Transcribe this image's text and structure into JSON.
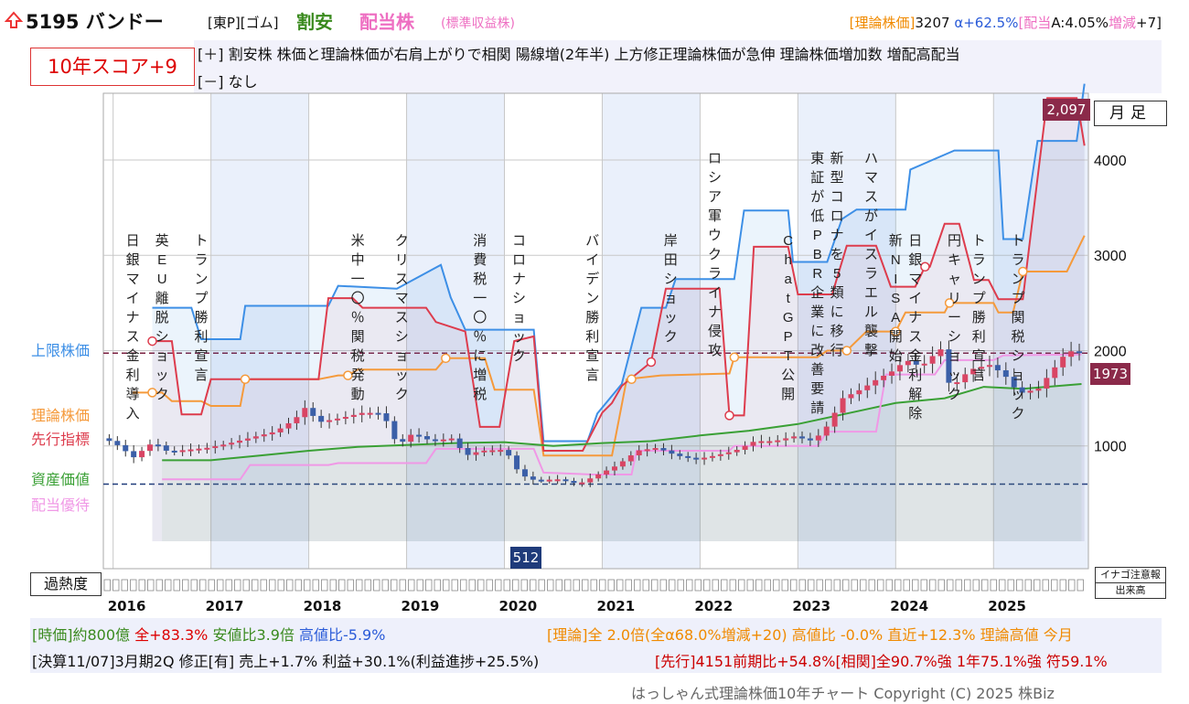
{
  "header": {
    "code_name": "5195 バンドー",
    "market": "[東P][ゴム]",
    "tag_cheap": "割安",
    "tag_div": "配当株",
    "basis": "(標準収益株)",
    "right_a": "[理論株価]",
    "right_b": "3207",
    "right_c": "α+62.5%",
    "right_d": "[配当",
    "right_e": "A:4.05%",
    "right_f": "増減",
    "right_g": "+7]",
    "score": "10年スコア+9",
    "plus_row": "[＋] 割安株 株価と理論株価が右肩上がりで相関 陽線増(2年半) 上方修正理論株価が急伸 理論株価増加数 増配高配当",
    "minus_row": "[－] なし"
  },
  "legend_labels": {
    "upper": "上限株価",
    "theory": "理論株価",
    "leading": "先行指標",
    "asset": "資産価値",
    "yield": "配当優待"
  },
  "boxes": {
    "monthly": "月足",
    "overheat": "過熱度",
    "warning": "イナゴ注意報",
    "volume": "出来高",
    "price_max": "2,097",
    "price_min": "512",
    "price_last": "1973"
  },
  "chart_data": {
    "type": "line",
    "x": [
      "2016",
      "2017",
      "2018",
      "2019",
      "2020",
      "2021",
      "2022",
      "2023",
      "2024",
      "2025"
    ],
    "y_ticks": [
      1000,
      2000,
      3000,
      4000
    ],
    "ylim": [
      0,
      4700
    ],
    "events": [
      {
        "x": 2016.2,
        "text": "日銀マイナス金利導入"
      },
      {
        "x": 2016.5,
        "text": "英EU離脱ショック"
      },
      {
        "x": 2016.9,
        "text": "トランプ勝利宣言"
      },
      {
        "x": 2018.5,
        "text": "米中一〇％関税発動"
      },
      {
        "x": 2018.95,
        "text": "クリスマスショック"
      },
      {
        "x": 2019.75,
        "text": "消費税一〇％に増税"
      },
      {
        "x": 2020.15,
        "text": "コロナショック"
      },
      {
        "x": 2020.9,
        "text": "バイデン勝利宣言"
      },
      {
        "x": 2021.7,
        "text": "岸田ショック"
      },
      {
        "x": 2022.15,
        "text": "ロシア軍ウクライナ侵攻"
      },
      {
        "x": 2022.9,
        "text": "ChatGPT公開"
      },
      {
        "x": 2023.2,
        "text": "東証が低PBR企業に改善要請"
      },
      {
        "x": 2023.4,
        "text": "新型コロナを5類に移行"
      },
      {
        "x": 2023.75,
        "text": "ハマスがイスラエル襲撃"
      },
      {
        "x": 2024.0,
        "text": "新NISA開始"
      },
      {
        "x": 2024.2,
        "text": "日銀マイナス金利解除"
      },
      {
        "x": 2024.6,
        "text": "円キャリーショック"
      },
      {
        "x": 2024.85,
        "text": "トランプ勝利宣言"
      },
      {
        "x": 2025.25,
        "text": "トランプ関税ショック"
      }
    ],
    "series": [
      {
        "name": "上限株価",
        "color": "#3d8fe6",
        "points": [
          [
            2016.4,
            2450
          ],
          [
            2016.8,
            2450
          ],
          [
            2016.9,
            2120
          ],
          [
            2017.3,
            2120
          ],
          [
            2017.35,
            2470
          ],
          [
            2018.2,
            2470
          ],
          [
            2018.3,
            2680
          ],
          [
            2018.9,
            2650
          ],
          [
            2019.35,
            2900
          ],
          [
            2019.45,
            2560
          ],
          [
            2019.6,
            2220
          ],
          [
            2020.3,
            2220
          ],
          [
            2020.4,
            1050
          ],
          [
            2020.85,
            1050
          ],
          [
            2020.95,
            1340
          ],
          [
            2021.2,
            1650
          ],
          [
            2021.4,
            2450
          ],
          [
            2021.65,
            2450
          ],
          [
            2021.75,
            2750
          ],
          [
            2022.35,
            2750
          ],
          [
            2022.45,
            3470
          ],
          [
            2022.9,
            3470
          ],
          [
            2022.95,
            2930
          ],
          [
            2023.3,
            2930
          ],
          [
            2023.45,
            3380
          ],
          [
            2023.6,
            3480
          ],
          [
            2024.1,
            3480
          ],
          [
            2024.15,
            3900
          ],
          [
            2024.6,
            4100
          ],
          [
            2025.05,
            4100
          ],
          [
            2025.1,
            3170
          ],
          [
            2025.3,
            3170
          ],
          [
            2025.45,
            4200
          ],
          [
            2025.85,
            4200
          ],
          [
            2025.93,
            4800
          ]
        ]
      },
      {
        "name": "理論株価",
        "color": "#f59a3b",
        "points": [
          [
            2016.2,
            1560
          ],
          [
            2016.5,
            1560
          ],
          [
            2016.6,
            1470
          ],
          [
            2016.9,
            1470
          ],
          [
            2017.0,
            1420
          ],
          [
            2017.3,
            1420
          ],
          [
            2017.35,
            1700
          ],
          [
            2018.1,
            1700
          ],
          [
            2018.3,
            1740
          ],
          [
            2018.4,
            1740
          ],
          [
            2018.5,
            1800
          ],
          [
            2019.3,
            1800
          ],
          [
            2019.4,
            1920
          ],
          [
            2019.8,
            1920
          ],
          [
            2019.9,
            1590
          ],
          [
            2020.3,
            1590
          ],
          [
            2020.4,
            900
          ],
          [
            2021.1,
            900
          ],
          [
            2021.25,
            1700
          ],
          [
            2021.6,
            1740
          ],
          [
            2022.3,
            1760
          ],
          [
            2022.35,
            1930
          ],
          [
            2023.2,
            1930
          ],
          [
            2023.3,
            2000
          ],
          [
            2023.5,
            2000
          ],
          [
            2023.7,
            2200
          ],
          [
            2024.0,
            2200
          ],
          [
            2024.1,
            2400
          ],
          [
            2024.5,
            2400
          ],
          [
            2024.55,
            2500
          ],
          [
            2025.0,
            2500
          ],
          [
            2025.05,
            2400
          ],
          [
            2025.2,
            2400
          ],
          [
            2025.3,
            2830
          ],
          [
            2025.75,
            2830
          ],
          [
            2025.93,
            3207
          ]
        ]
      },
      {
        "name": "先行指標",
        "color": "#dd3c4d",
        "points": [
          [
            2016.4,
            2100
          ],
          [
            2016.6,
            2100
          ],
          [
            2016.7,
            1330
          ],
          [
            2016.9,
            1330
          ],
          [
            2017.0,
            1700
          ],
          [
            2018.1,
            1700
          ],
          [
            2018.2,
            2550
          ],
          [
            2018.45,
            2550
          ],
          [
            2018.55,
            2450
          ],
          [
            2019.2,
            2450
          ],
          [
            2019.3,
            2300
          ],
          [
            2019.6,
            2200
          ],
          [
            2019.75,
            1200
          ],
          [
            2019.95,
            1200
          ],
          [
            2020.1,
            2100
          ],
          [
            2020.3,
            2150
          ],
          [
            2020.4,
            950
          ],
          [
            2020.8,
            950
          ],
          [
            2021.0,
            1350
          ],
          [
            2021.1,
            1450
          ],
          [
            2021.2,
            1630
          ],
          [
            2021.5,
            1880
          ],
          [
            2021.65,
            2650
          ],
          [
            2022.2,
            2650
          ],
          [
            2022.3,
            1320
          ],
          [
            2022.45,
            1320
          ],
          [
            2022.55,
            3090
          ],
          [
            2022.9,
            3090
          ],
          [
            2023.0,
            2590
          ],
          [
            2023.35,
            2590
          ],
          [
            2023.5,
            3100
          ],
          [
            2023.8,
            3100
          ],
          [
            2023.95,
            2670
          ],
          [
            2024.2,
            2670
          ],
          [
            2024.3,
            2880
          ],
          [
            2024.35,
            2880
          ],
          [
            2024.5,
            3330
          ],
          [
            2024.65,
            3330
          ],
          [
            2024.8,
            2740
          ],
          [
            2024.95,
            2740
          ],
          [
            2025.05,
            2540
          ],
          [
            2025.3,
            2540
          ],
          [
            2025.55,
            4650
          ],
          [
            2025.85,
            4650
          ],
          [
            2025.93,
            4150
          ]
        ]
      },
      {
        "name": "資産価値",
        "color": "#3aa035",
        "points": [
          [
            2016.5,
            850
          ],
          [
            2017.0,
            850
          ],
          [
            2017.5,
            900
          ],
          [
            2018.0,
            950
          ],
          [
            2018.5,
            990
          ],
          [
            2019.5,
            1030
          ],
          [
            2020.0,
            1040
          ],
          [
            2020.5,
            1000
          ],
          [
            2021.0,
            1030
          ],
          [
            2021.5,
            1050
          ],
          [
            2022.0,
            1110
          ],
          [
            2022.5,
            1160
          ],
          [
            2023.0,
            1230
          ],
          [
            2023.5,
            1340
          ],
          [
            2024.0,
            1450
          ],
          [
            2024.5,
            1500
          ],
          [
            2024.9,
            1620
          ],
          [
            2025.3,
            1600
          ],
          [
            2025.9,
            1650
          ]
        ]
      },
      {
        "name": "配当優待",
        "color": "#f098e6",
        "points": [
          [
            2016.5,
            650
          ],
          [
            2017.3,
            650
          ],
          [
            2017.4,
            800
          ],
          [
            2018.2,
            800
          ],
          [
            2018.3,
            820
          ],
          [
            2019.2,
            820
          ],
          [
            2019.3,
            970
          ],
          [
            2020.3,
            970
          ],
          [
            2020.4,
            720
          ],
          [
            2020.9,
            700
          ],
          [
            2021.3,
            700
          ],
          [
            2021.35,
            950
          ],
          [
            2022.3,
            950
          ],
          [
            2022.35,
            1000
          ],
          [
            2023.2,
            1000
          ],
          [
            2023.3,
            1150
          ],
          [
            2023.8,
            1150
          ],
          [
            2023.9,
            1750
          ],
          [
            2024.4,
            1750
          ],
          [
            2024.5,
            1900
          ],
          [
            2025.0,
            1900
          ],
          [
            2025.1,
            1950
          ],
          [
            2025.9,
            1960
          ]
        ]
      }
    ],
    "price_ref_line": 1973,
    "lower_ref_line": 600,
    "price_path": [
      [
        2015.95,
        1080
      ],
      [
        2016.1,
        1000
      ],
      [
        2016.25,
        880
      ],
      [
        2016.45,
        1040
      ],
      [
        2016.6,
        940
      ],
      [
        2016.8,
        960
      ],
      [
        2017.0,
        980
      ],
      [
        2017.2,
        1020
      ],
      [
        2017.5,
        1100
      ],
      [
        2017.7,
        1150
      ],
      [
        2017.9,
        1280
      ],
      [
        2018.0,
        1400
      ],
      [
        2018.15,
        1250
      ],
      [
        2018.4,
        1300
      ],
      [
        2018.6,
        1350
      ],
      [
        2018.8,
        1340
      ],
      [
        2018.95,
        1000
      ],
      [
        2019.1,
        1130
      ],
      [
        2019.3,
        1050
      ],
      [
        2019.5,
        1080
      ],
      [
        2019.65,
        900
      ],
      [
        2019.8,
        950
      ],
      [
        2020.05,
        960
      ],
      [
        2020.2,
        700
      ],
      [
        2020.35,
        640
      ],
      [
        2020.6,
        650
      ],
      [
        2020.8,
        600
      ],
      [
        2021.0,
        700
      ],
      [
        2021.2,
        800
      ],
      [
        2021.4,
        950
      ],
      [
        2021.6,
        980
      ],
      [
        2021.8,
        900
      ],
      [
        2022.0,
        860
      ],
      [
        2022.2,
        900
      ],
      [
        2022.4,
        950
      ],
      [
        2022.6,
        1050
      ],
      [
        2022.8,
        1050
      ],
      [
        2023.0,
        1100
      ],
      [
        2023.2,
        1050
      ],
      [
        2023.35,
        1220
      ],
      [
        2023.5,
        1500
      ],
      [
        2023.7,
        1600
      ],
      [
        2023.85,
        1700
      ],
      [
        2024.0,
        1780
      ],
      [
        2024.15,
        1900
      ],
      [
        2024.3,
        1830
      ],
      [
        2024.5,
        2020
      ],
      [
        2024.6,
        1600
      ],
      [
        2024.8,
        1800
      ],
      [
        2025.0,
        1850
      ],
      [
        2025.15,
        1750
      ],
      [
        2025.3,
        1550
      ],
      [
        2025.5,
        1600
      ],
      [
        2025.65,
        1800
      ],
      [
        2025.8,
        2000
      ],
      [
        2025.93,
        1973
      ]
    ]
  },
  "years": [
    "2016",
    "2017",
    "2018",
    "2019",
    "2020",
    "2021",
    "2022",
    "2023",
    "2024",
    "2025"
  ],
  "footer": {
    "row1_a": "[時価]約800億",
    "row1_b": "全+83.3%",
    "row1_c": "安値比3.9倍",
    "row1_d": "高値比-5.9%",
    "row1_e": "[理論]全 2.0倍(全α68.0%増減+20) 高値比 -0.0% 直近+12.3% 理論高値 今月",
    "row2_a": "[決算11/07]3月期2Q 修正[有] 売上+1.7% 利益+30.1%(利益進捗+25.5%)",
    "row2_b": "[先行]4151前期比+54.8%[相関]全90.7%強 1年75.1%強 符59.1%",
    "copyright": "はっしゃん式理論株価10年チャート Copyright (C) 2025 株Biz"
  }
}
